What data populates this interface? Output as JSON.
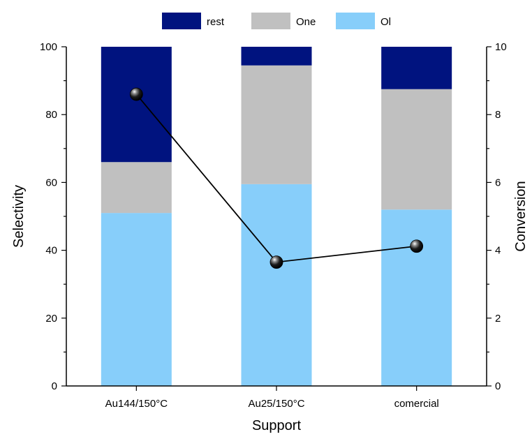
{
  "chart_data": {
    "type": "bar",
    "stacked": true,
    "categories": [
      "Au144/150°C",
      "Au25/150°C",
      "comercial"
    ],
    "series": [
      {
        "name": "Ol",
        "values": [
          51,
          59.5,
          52
        ],
        "color": "#87CEFA"
      },
      {
        "name": "One",
        "values": [
          15,
          35,
          35.5
        ],
        "color": "#C0C0C0"
      },
      {
        "name": "rest",
        "values": [
          34,
          5.5,
          12.5
        ],
        "color": "#00137F"
      }
    ],
    "line_series": {
      "axis": "right",
      "values": [
        8.6,
        3.65,
        4.12
      ],
      "color": "#000000"
    },
    "xlabel": "Support",
    "ylabel": "Selectivity",
    "y2label": "Conversion",
    "ylim": [
      0,
      100
    ],
    "y2lim": [
      0,
      10
    ],
    "yticks": [
      0,
      20,
      40,
      60,
      80,
      100
    ],
    "y2ticks": [
      0,
      2,
      4,
      6,
      8,
      10
    ],
    "grid": false,
    "legend_position": "top"
  }
}
